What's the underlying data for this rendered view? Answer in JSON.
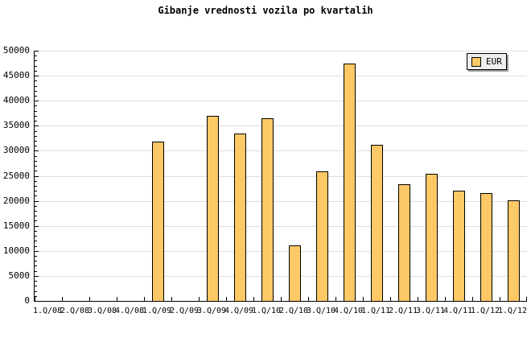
{
  "title": "Gibanje vrednosti vozila po kvartalih",
  "legend": {
    "label": "EUR"
  },
  "colors": {
    "bar_fill": "#FDC866",
    "bar_border": "#000000",
    "gridline": "#DDDDDD",
    "axis": "#000000",
    "legend_bg": "#EEEEEE",
    "legend_shadow": "#999999",
    "background": "#FFFFFF"
  },
  "chart_data": {
    "type": "bar",
    "title": "Gibanje vrednosti vozila po kvartalih",
    "categories": [
      "1.Q/08",
      "2.Q/08",
      "3.Q/08",
      "4.Q/08",
      "1.Q/09",
      "2.Q/09",
      "3.Q/09",
      "4.Q/09",
      "1.Q/10",
      "2.Q/10",
      "3.Q/10",
      "4.Q/10",
      "1.Q/11",
      "2.Q/11",
      "3.Q/11",
      "4.Q/11",
      "1.Q/12",
      "1.Q/12"
    ],
    "series": [
      {
        "name": "EUR",
        "values": [
          0,
          0,
          0,
          0,
          31800,
          0,
          37000,
          33400,
          36500,
          11100,
          25900,
          47400,
          31200,
          23300,
          25400,
          22000,
          21500,
          20100
        ]
      }
    ],
    "xlabel": "",
    "ylabel": "",
    "ylim": [
      0,
      50000
    ],
    "ytick_interval": 5000,
    "minor_tick_interval": 1000,
    "ytick_labels": [
      "0",
      "5000",
      "10000",
      "15000",
      "20000",
      "25000",
      "30000",
      "35000",
      "40000",
      "45000",
      "50000"
    ],
    "grid": "horizontal-major",
    "legend_position": "top-right"
  }
}
